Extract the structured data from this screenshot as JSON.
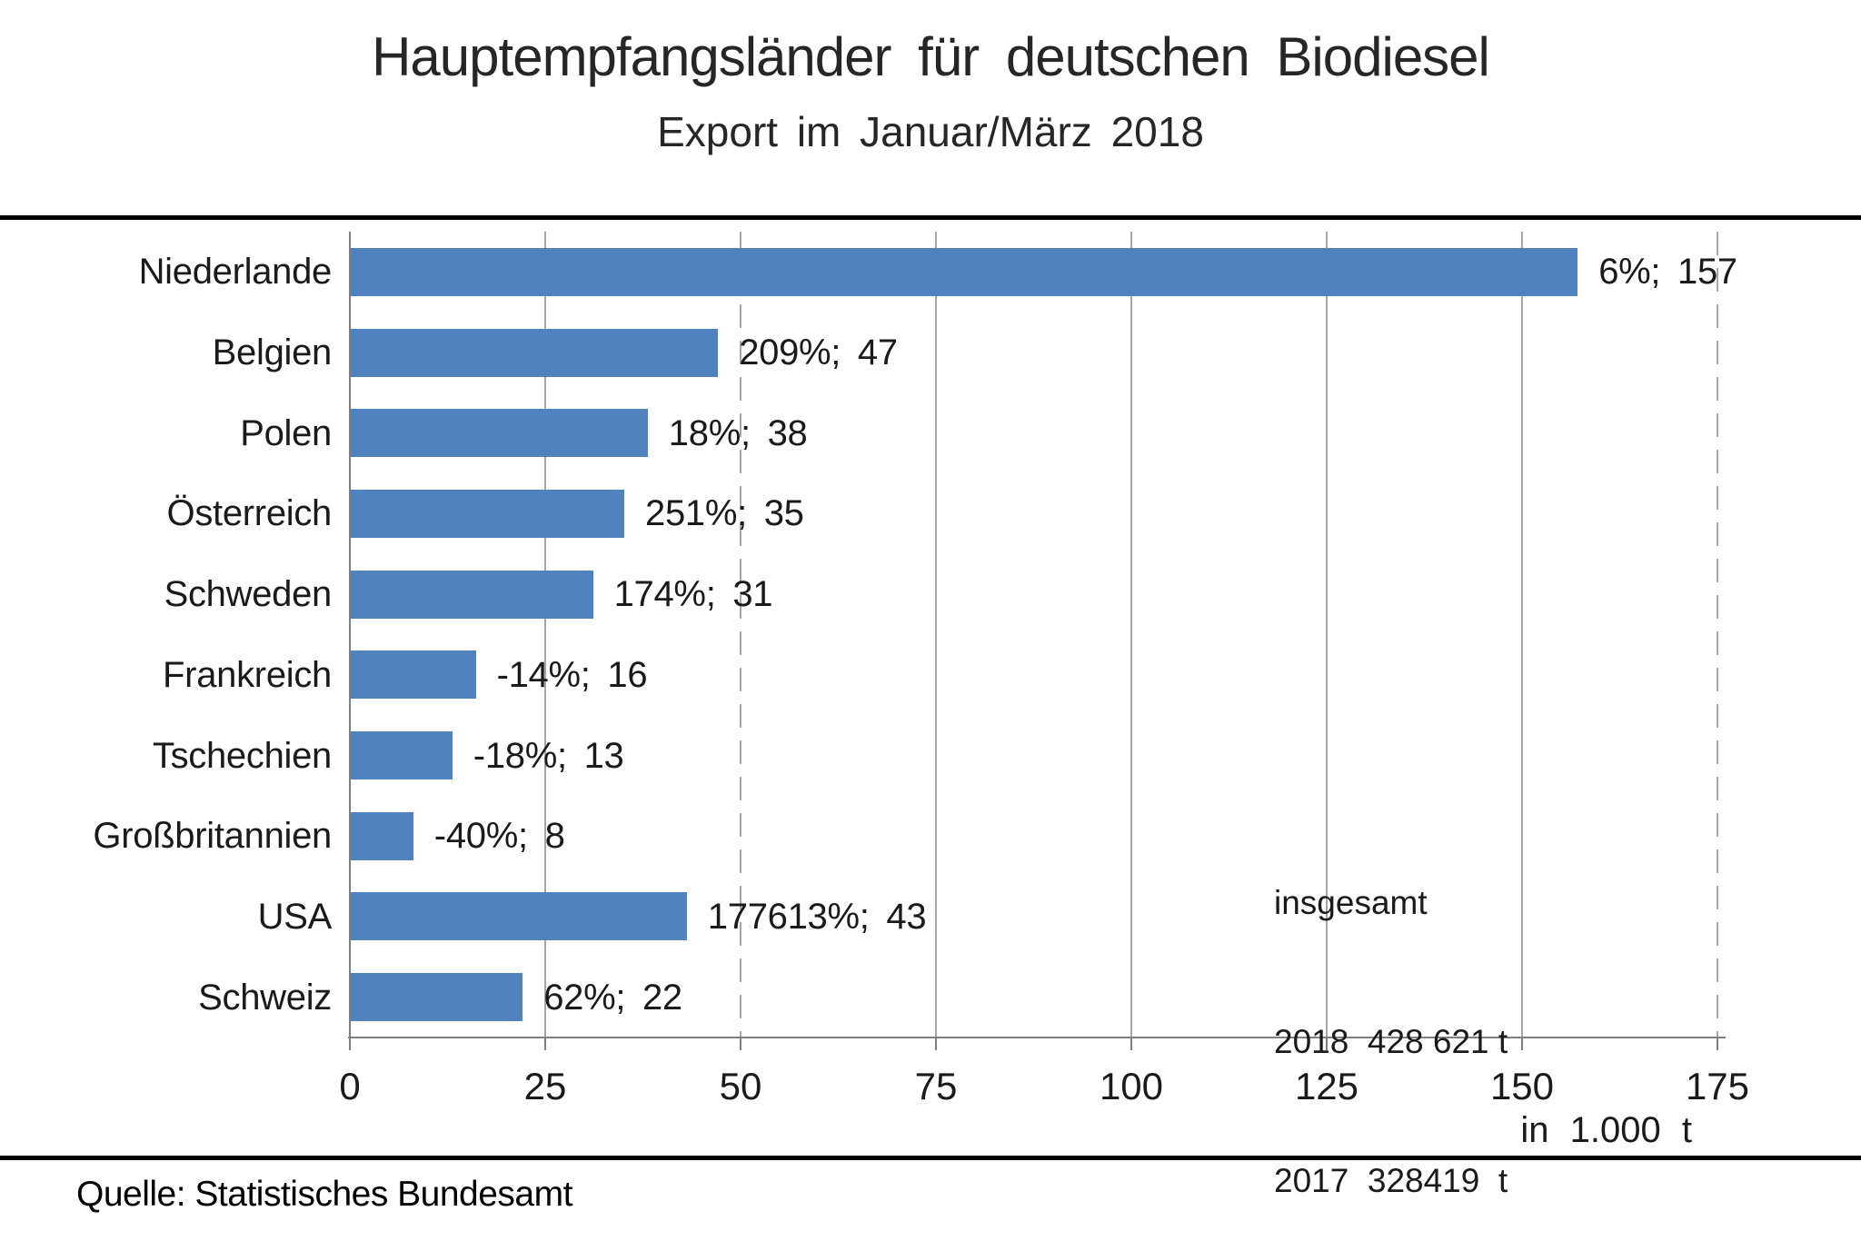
{
  "chart_data": {
    "type": "bar",
    "orientation": "horizontal",
    "title": "Hauptempfangsländer für deutschen Biodiesel",
    "subtitle": "Export im Januar/März 2018",
    "categories": [
      "Niederlande",
      "Belgien",
      "Polen",
      "Österreich",
      "Schweden",
      "Frankreich",
      "Tschechien",
      "Großbritannien",
      "USA",
      "Schweiz"
    ],
    "values": [
      157,
      47,
      38,
      35,
      31,
      16,
      13,
      8,
      43,
      22
    ],
    "bar_labels": [
      "6%; 157",
      "209%; 47",
      "18%; 38",
      "251%; 35",
      "174%; 31",
      "-14%; 16",
      "-18%; 13",
      "-40%; 8",
      "177613%; 43",
      "62%; 22"
    ],
    "pct_change": [
      6,
      209,
      18,
      251,
      174,
      -14,
      -18,
      -40,
      177613,
      62
    ],
    "x_ticks": [
      0,
      25,
      50,
      75,
      100,
      125,
      150,
      175
    ],
    "xlim": [
      0,
      175
    ],
    "grid_on": true,
    "grid_styles": {
      "25": "solid",
      "50": "dashed",
      "75": "solid",
      "100": "solid",
      "125": "solid",
      "150": "solid",
      "175": "dashed"
    },
    "axis_unit": "in 1.000 t",
    "bar_color": "#4F82BE",
    "grid_color": "#A6A6A6",
    "axis_color": "#7F7F7F",
    "legend_position": "none"
  },
  "totals": {
    "title": "insgesamt",
    "line_2018": "2018  428 621 t",
    "line_2017": "2017  328419  t"
  },
  "source": "Quelle: Statistisches Bundesamt"
}
